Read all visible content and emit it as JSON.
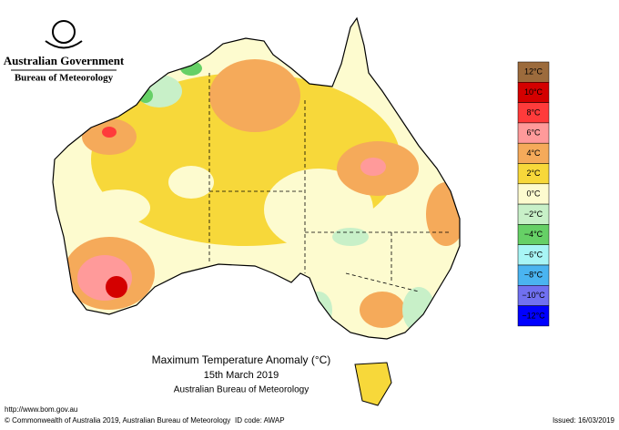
{
  "header": {
    "government": "Australian Government",
    "agency": "Bureau of Meteorology"
  },
  "legend": {
    "colors": [
      "#9c6b3c",
      "#d40000",
      "#ff3b3b",
      "#ff9a9a",
      "#f5aa5a",
      "#f7d83a",
      "#fdfbcf",
      "#c8f0c8",
      "#66d066",
      "#a8f5f5",
      "#4ab4f0",
      "#7070f0",
      "#0000ff"
    ],
    "labels": [
      "12°C",
      "10°C",
      "8°C",
      "6°C",
      "4°C",
      "2°C",
      "0°C",
      "−2°C",
      "−4°C",
      "−6°C",
      "−8°C",
      "−10°C",
      "−12°C"
    ]
  },
  "caption": {
    "title": "Maximum Temperature Anomaly (°C)",
    "date": "15th March 2019",
    "source": "Australian Bureau of Meteorology"
  },
  "footer": {
    "url": "http://www.bom.gov.au",
    "copyright": "© Commonwealth of Australia 2019, Australian Bureau of Meteorology",
    "id_code": "ID code: AWAP",
    "issued": "Issued: 16/03/2019"
  }
}
